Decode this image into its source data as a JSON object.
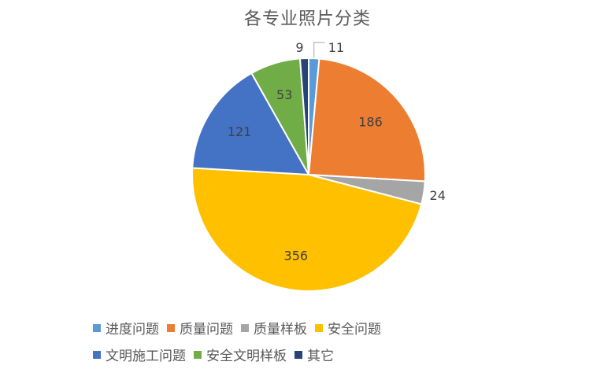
{
  "chart_data": {
    "type": "pie",
    "title": "各专业照片分类",
    "categories": [
      "进度问题",
      "质量问题",
      "质量样板",
      "安全问题",
      "文明施工问题",
      "安全文明样板",
      "其它"
    ],
    "values": [
      11,
      186,
      24,
      356,
      121,
      53,
      9
    ],
    "colors": [
      "#5b9bd5",
      "#ed7d31",
      "#a5a5a5",
      "#ffc000",
      "#4472c4",
      "#70ad47",
      "#264478"
    ],
    "legend_position": "bottom",
    "labels_shown": true
  }
}
